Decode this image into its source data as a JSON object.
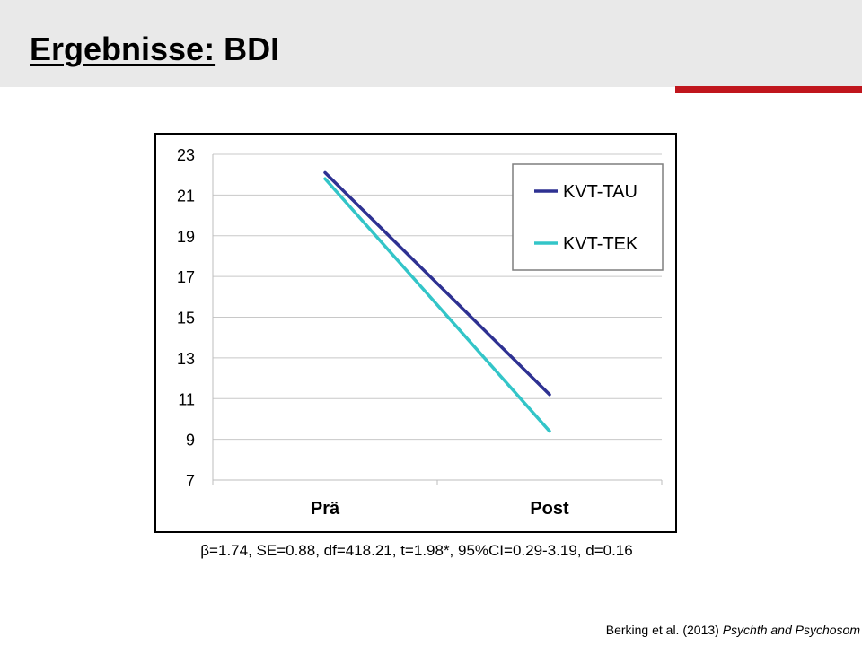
{
  "slide": {
    "title_underlined": "Ergebnisse:",
    "title_rest": "BDI",
    "accent_color": "#c0161d",
    "stats_line": "β=1.74, SE=0.88, df=418.21, t=1.98*, 95%CI=0.29-3.19, d=0.16",
    "citation_authors": "Berking et al. (2013)",
    "citation_journal": "Psychth and Psychosom"
  },
  "chart_data": {
    "type": "line",
    "categories": [
      "Prä",
      "Post"
    ],
    "series": [
      {
        "name": "KVT-TAU",
        "values": [
          22.1,
          11.2
        ],
        "color": "#2e3192"
      },
      {
        "name": "KVT-TEK",
        "values": [
          21.8,
          9.4
        ],
        "color": "#33c5c8"
      }
    ],
    "title": "",
    "xlabel": "",
    "ylabel": "",
    "ylim": [
      7,
      23
    ],
    "yticks": [
      7,
      9,
      11,
      13,
      15,
      17,
      19,
      21,
      23
    ],
    "grid": true,
    "legend": "top-right"
  }
}
